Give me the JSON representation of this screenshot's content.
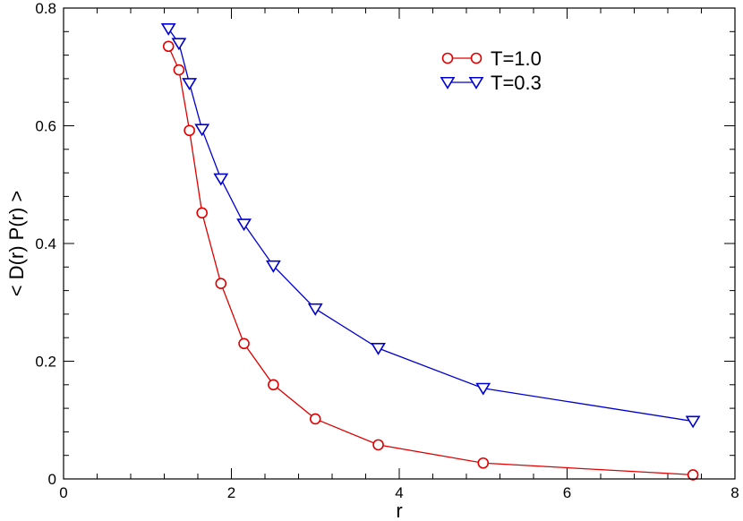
{
  "chart_data": {
    "type": "line",
    "xlabel": "r",
    "ylabel": "< D(r) P(r) >",
    "xlim": [
      0,
      8
    ],
    "ylim": [
      0,
      0.8
    ],
    "x_ticks": [
      0,
      2,
      4,
      6,
      8
    ],
    "x_tick_labels": [
      "0",
      "2",
      "4",
      "6",
      "8"
    ],
    "x_minor_step": 0.4,
    "y_ticks": [
      0,
      0.2,
      0.4,
      0.6,
      0.8
    ],
    "y_tick_labels": [
      "0",
      "0.2",
      "0.4",
      "0.6",
      "0.8"
    ],
    "y_minor_step": 0.04,
    "grid": false,
    "legend_position": "top-right",
    "series": [
      {
        "name": "T=1.0",
        "color": "#e00000",
        "marker": "circle",
        "x": [
          1.25,
          1.375,
          1.5,
          1.65,
          1.875,
          2.15,
          2.5,
          3.0,
          3.75,
          5.0,
          7.5
        ],
        "y": [
          0.735,
          0.695,
          0.592,
          0.452,
          0.332,
          0.23,
          0.16,
          0.102,
          0.058,
          0.027,
          0.007
        ]
      },
      {
        "name": "T=0.3",
        "color": "#0000d0",
        "marker": "triangle-down",
        "x": [
          1.25,
          1.375,
          1.5,
          1.65,
          1.875,
          2.15,
          2.5,
          3.0,
          3.75,
          5.0,
          7.5
        ],
        "y": [
          0.765,
          0.74,
          0.672,
          0.594,
          0.51,
          0.433,
          0.362,
          0.289,
          0.222,
          0.154,
          0.098
        ]
      }
    ]
  }
}
